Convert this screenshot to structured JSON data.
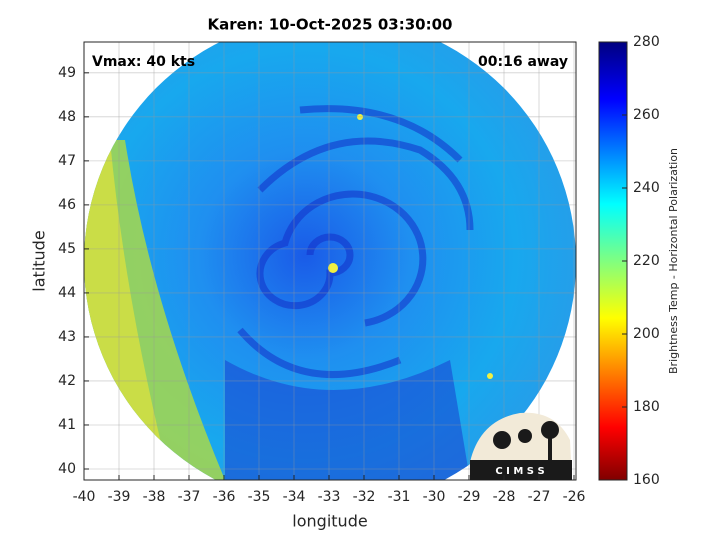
{
  "chart_data": {
    "type": "image",
    "title": "Karen: 10-Oct-2025 03:30:00",
    "annotations": [
      "Vmax: 40 kts",
      "00:16 away"
    ],
    "xlabel": "longitude",
    "ylabel": "latitude",
    "xlim": [
      -40,
      -26
    ],
    "xticks": [
      -40,
      -39,
      -38,
      -37,
      -36,
      -35,
      -34,
      -33,
      -32,
      -31,
      -30,
      -29,
      -28,
      -27,
      -26
    ],
    "ylim": [
      39.75,
      49.7
    ],
    "yticks": [
      40,
      41,
      42,
      43,
      44,
      45,
      46,
      47,
      48,
      49
    ],
    "grid": true,
    "colorbar": {
      "label": "Brightness Temp - Horizontal Polarization",
      "lim": [
        160,
        280
      ],
      "ticks": [
        160,
        180,
        200,
        220,
        240,
        260,
        280
      ]
    },
    "logo": "C I M S S"
  }
}
